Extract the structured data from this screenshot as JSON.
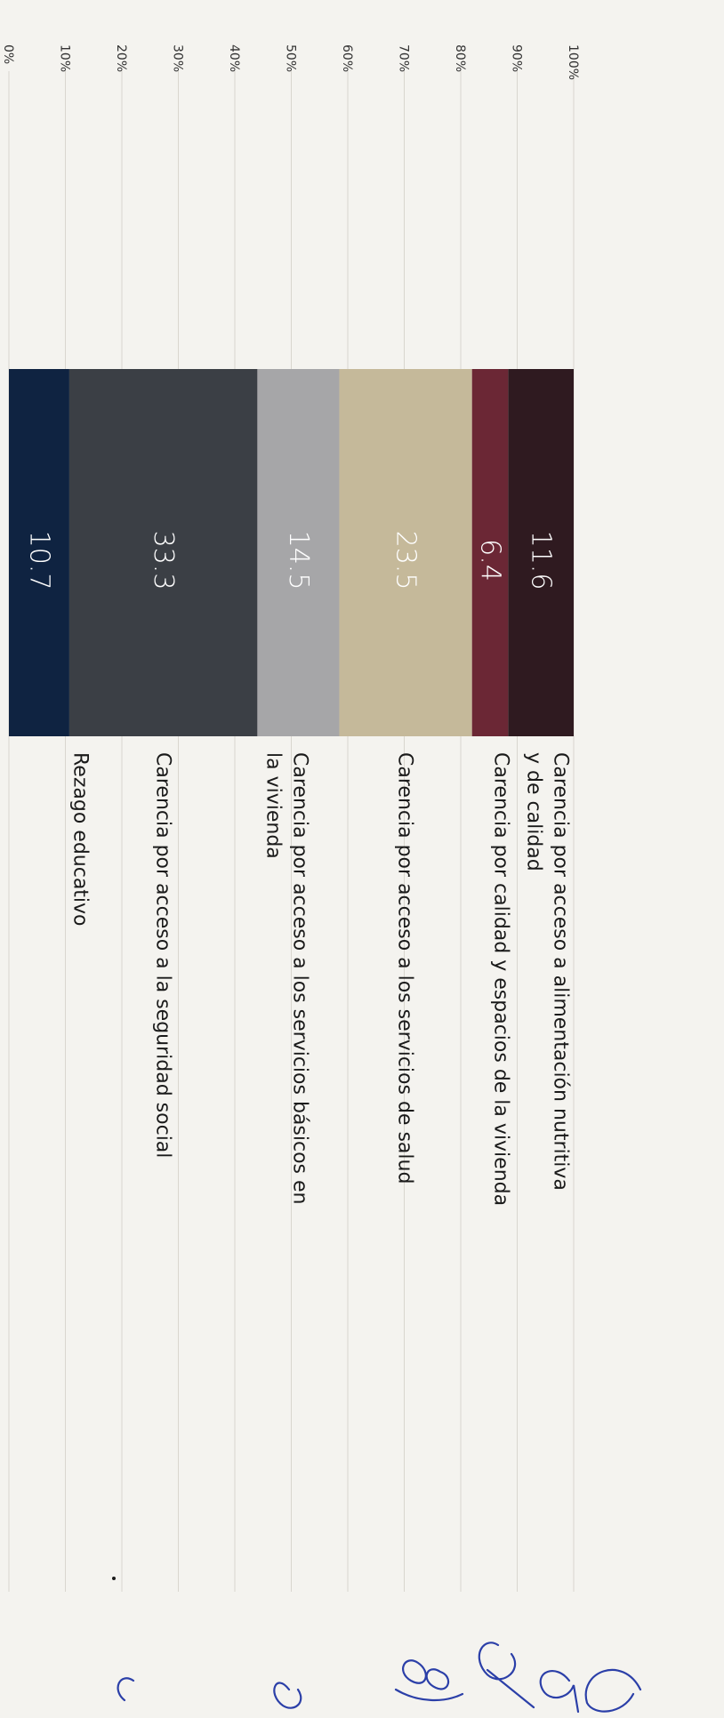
{
  "chart_data": {
    "type": "bar",
    "stacked": true,
    "orientation": "vertical",
    "ylim": [
      0,
      100
    ],
    "yticks": [
      0,
      10,
      20,
      30,
      40,
      50,
      60,
      70,
      80,
      90,
      100
    ],
    "tick_labels": [
      "0%",
      "10%",
      "20%",
      "30%",
      "40%",
      "50%",
      "60%",
      "70%",
      "80%",
      "90%",
      "100%"
    ],
    "grid": true,
    "legend_position": "right",
    "series": [
      {
        "name": "Rezago educativo",
        "value": 10.7,
        "label": "10.7",
        "color": "#0f2341",
        "legend_lines": [
          "Rezago educativo"
        ]
      },
      {
        "name": "Carencia por acceso a la seguridad social",
        "value": 33.3,
        "label": "33.3",
        "color": "#3b3f45",
        "legend_lines": [
          "Carencia por acceso a la seguridad social"
        ]
      },
      {
        "name": "Carencia por acceso a los servicios básicos en la vivienda",
        "value": 14.5,
        "label": "14.5",
        "color": "#a6a6a8",
        "legend_lines": [
          "Carencia por acceso a los servicios básicos en",
          "la vivienda"
        ]
      },
      {
        "name": "Carencia por acceso a los servicios de salud",
        "value": 23.5,
        "label": "23.5",
        "color": "#c5b99a",
        "legend_lines": [
          "Carencia por acceso a los servicios de salud"
        ]
      },
      {
        "name": "Carencia por calidad y espacios de la vivienda",
        "value": 6.4,
        "label": "6.4",
        "color": "#6b2735",
        "legend_lines": [
          "Carencia por calidad y espacios de la vivienda"
        ]
      },
      {
        "name": "Carencia por acceso a alimentación nutritiva y de calidad",
        "value": 11.6,
        "label": "11.6",
        "color": "#2f1a20",
        "legend_lines": [
          "Carencia por acceso a alimentación nutritiva",
          "y de calidad"
        ]
      }
    ]
  }
}
